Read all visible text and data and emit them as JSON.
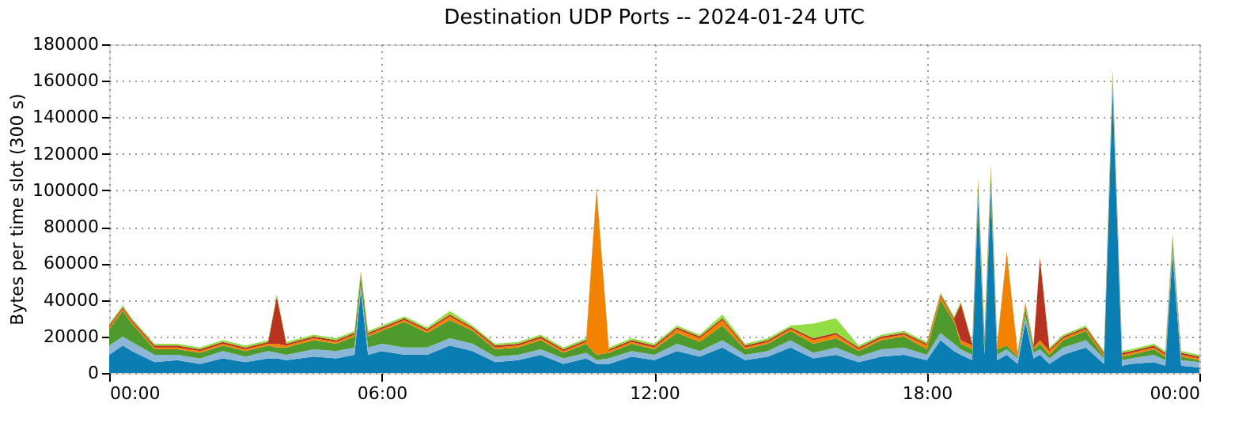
{
  "chart_data": {
    "type": "area",
    "title": "Destination UDP Ports -- 2024-01-24 UTC",
    "ylabel": "Bytes per time slot (300 s)",
    "stacked": true,
    "grid": true,
    "legend": false,
    "xlim": [
      0,
      24
    ],
    "xticks": [
      {
        "value": 0,
        "label": "00:00"
      },
      {
        "value": 6,
        "label": "06:00"
      },
      {
        "value": 12,
        "label": "12:00"
      },
      {
        "value": 18,
        "label": "18:00"
      },
      {
        "value": 24,
        "label": "00:00"
      }
    ],
    "ylim": [
      0,
      180000
    ],
    "yticks": [
      0,
      20000,
      40000,
      60000,
      80000,
      100000,
      120000,
      140000,
      160000,
      180000
    ],
    "x": [
      0,
      0.3,
      0.5,
      1,
      1.5,
      2,
      2.5,
      3,
      3.5,
      3.69,
      3.9,
      4.5,
      5,
      5.4,
      5.54,
      5.7,
      6,
      6.5,
      7,
      7.5,
      8,
      8.5,
      9,
      9.5,
      10,
      10.5,
      10.73,
      11,
      11.5,
      12,
      12.5,
      13,
      13.5,
      14,
      14.5,
      15,
      15.5,
      16,
      16.5,
      17,
      17.5,
      18,
      18.3,
      18.6,
      18.75,
      19,
      19.13,
      19.27,
      19.41,
      19.55,
      19.76,
      20,
      20.17,
      20.35,
      20.49,
      20.7,
      21,
      21.5,
      21.9,
      22.09,
      22.3,
      22.5,
      23,
      23.25,
      23.41,
      23.6,
      24
    ],
    "series": [
      {
        "color": "#0a7db2",
        "values": [
          10000,
          15000,
          12000,
          6000,
          7000,
          5000,
          8000,
          6000,
          8000,
          8000,
          7000,
          9000,
          8000,
          10000,
          45000,
          10000,
          12000,
          10000,
          10000,
          15000,
          12000,
          6000,
          7000,
          10000,
          5000,
          8000,
          5000,
          5000,
          9000,
          7000,
          12000,
          9000,
          14000,
          7000,
          9000,
          14000,
          8000,
          10000,
          6000,
          9000,
          10000,
          7000,
          18000,
          12000,
          10000,
          7000,
          95000,
          10000,
          100000,
          7000,
          10000,
          5000,
          28000,
          8000,
          10000,
          5000,
          10000,
          14000,
          5000,
          155000,
          4000,
          5000,
          6000,
          4000,
          65000,
          4000,
          3000
        ]
      },
      {
        "color": "#8cb6d8",
        "values": [
          5000,
          5000,
          5000,
          4000,
          3000,
          3000,
          4000,
          3000,
          4000,
          3000,
          3000,
          4000,
          4000,
          4000,
          3000,
          4000,
          4000,
          4000,
          4000,
          4000,
          4000,
          3000,
          3000,
          3000,
          3000,
          3000,
          2000,
          3000,
          3000,
          3000,
          4000,
          3000,
          4000,
          3000,
          3000,
          4000,
          3000,
          4000,
          3000,
          4000,
          4000,
          3000,
          4000,
          4000,
          3000,
          3000,
          3000,
          3000,
          3000,
          3000,
          3000,
          3000,
          3000,
          3000,
          3000,
          3000,
          4000,
          4000,
          3000,
          3000,
          3000,
          3000,
          4000,
          3000,
          3000,
          3000,
          3000
        ]
      },
      {
        "color": "#4f9a2c",
        "values": [
          9000,
          14000,
          10000,
          3000,
          3000,
          3000,
          3000,
          3000,
          3000,
          3000,
          4000,
          5000,
          4000,
          6000,
          5000,
          6000,
          7000,
          14000,
          8000,
          10000,
          7000,
          4000,
          4000,
          5000,
          3000,
          5000,
          3000,
          3000,
          4000,
          3000,
          6000,
          5000,
          8000,
          3000,
          4000,
          5000,
          5000,
          5000,
          3000,
          5000,
          6000,
          3000,
          18000,
          12000,
          3000,
          3000,
          5000,
          5000,
          6000,
          3000,
          2000,
          1000,
          4000,
          2000,
          3000,
          2000,
          4000,
          5000,
          1000,
          4000,
          2000,
          2000,
          3000,
          2000,
          4000,
          2000,
          1000
        ]
      },
      {
        "color": "#f28200",
        "values": [
          1000,
          1000,
          1000,
          1000,
          1000,
          1000,
          1000,
          1000,
          1000,
          2000,
          1000,
          1000,
          1000,
          1000,
          1000,
          1000,
          1000,
          1000,
          1000,
          2000,
          1000,
          1000,
          1000,
          1000,
          1000,
          1000,
          90000,
          1000,
          1000,
          1000,
          2000,
          2000,
          3000,
          1000,
          1000,
          1000,
          2000,
          2000,
          1000,
          1000,
          1000,
          2000,
          2000,
          1000,
          2000,
          2000,
          2000,
          2000,
          3000,
          2000,
          50000,
          1000,
          2000,
          1000,
          2000,
          2000,
          1000,
          1000,
          1000,
          2000,
          1000,
          1000,
          1000,
          1000,
          2000,
          1000,
          1000
        ]
      },
      {
        "color": "#b83222",
        "values": [
          1000,
          1000,
          1000,
          1000,
          1000,
          1000,
          1000,
          1000,
          1000,
          26000,
          1000,
          1000,
          1000,
          1000,
          1000,
          1000,
          1000,
          1000,
          1000,
          1000,
          1000,
          1000,
          1000,
          1000,
          1000,
          1000,
          1000,
          1000,
          1000,
          1000,
          1000,
          1000,
          1000,
          1000,
          1000,
          1000,
          1000,
          1000,
          1000,
          1000,
          1000,
          1000,
          1000,
          1000,
          20000,
          1000,
          1000,
          1000,
          1000,
          1000,
          1000,
          1000,
          1000,
          1000,
          45000,
          1000,
          1000,
          1000,
          1000,
          1000,
          1000,
          1000,
          1000,
          1000,
          1000,
          1000,
          1000
        ]
      },
      {
        "color": "#92dc44",
        "values": [
          1000,
          1000,
          1000,
          1000,
          1000,
          1000,
          1000,
          1000,
          1000,
          1000,
          1000,
          1000,
          1000,
          1000,
          1000,
          1000,
          1000,
          1000,
          1000,
          2000,
          1000,
          1000,
          1000,
          1000,
          1000,
          1000,
          1000,
          1000,
          1000,
          1000,
          1000,
          1000,
          2000,
          1000,
          1000,
          1000,
          8000,
          8000,
          1000,
          1000,
          1000,
          1000,
          1000,
          1000,
          1000,
          1000,
          1000,
          1000,
          1000,
          1000,
          1000,
          1000,
          1000,
          1000,
          1000,
          1000,
          1000,
          1000,
          1000,
          1000,
          1000,
          1000,
          1000,
          1000,
          1000,
          1000,
          1000
        ]
      }
    ]
  }
}
